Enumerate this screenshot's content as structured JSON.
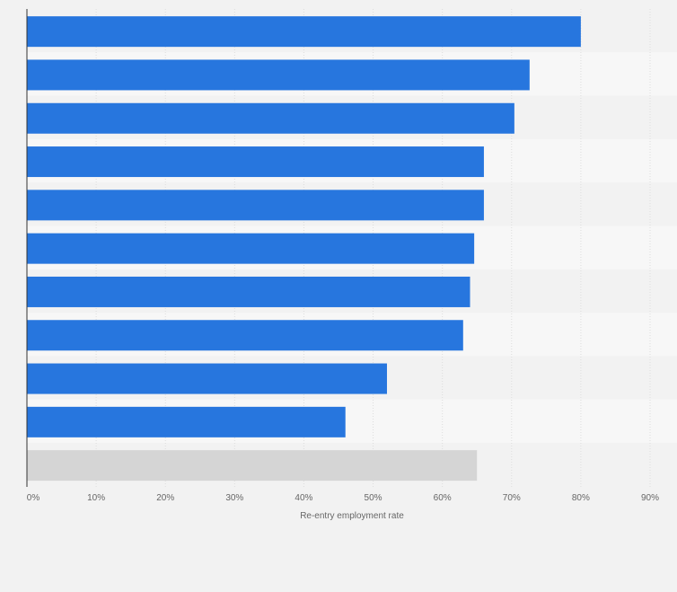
{
  "chart_data": {
    "type": "bar",
    "orientation": "horizontal",
    "title": "",
    "xlabel": "Re-entry employment rate",
    "ylabel": "",
    "xlim": [
      0,
      90
    ],
    "x_ticks": [
      0,
      10,
      20,
      30,
      40,
      50,
      60,
      70,
      80,
      90
    ],
    "x_tick_labels": [
      "0%",
      "10%",
      "20%",
      "30%",
      "40%",
      "50%",
      "60%",
      "70%",
      "80%",
      "90%"
    ],
    "values": [
      80,
      72.6,
      70.4,
      66,
      66,
      64.6,
      64,
      63,
      52,
      46,
      65
    ],
    "bar_colors": [
      "#2776de",
      "#2776de",
      "#2776de",
      "#2776de",
      "#2776de",
      "#2776de",
      "#2776de",
      "#2776de",
      "#2776de",
      "#2776de",
      "#d5d5d5"
    ],
    "grid": true
  },
  "colors": {
    "accent": "#2776de",
    "highlight_bar": "#d5d5d5",
    "background": "#f2f2f2",
    "band": "#f7f7f7",
    "grid": "#dddddd",
    "axis": "#333333"
  }
}
